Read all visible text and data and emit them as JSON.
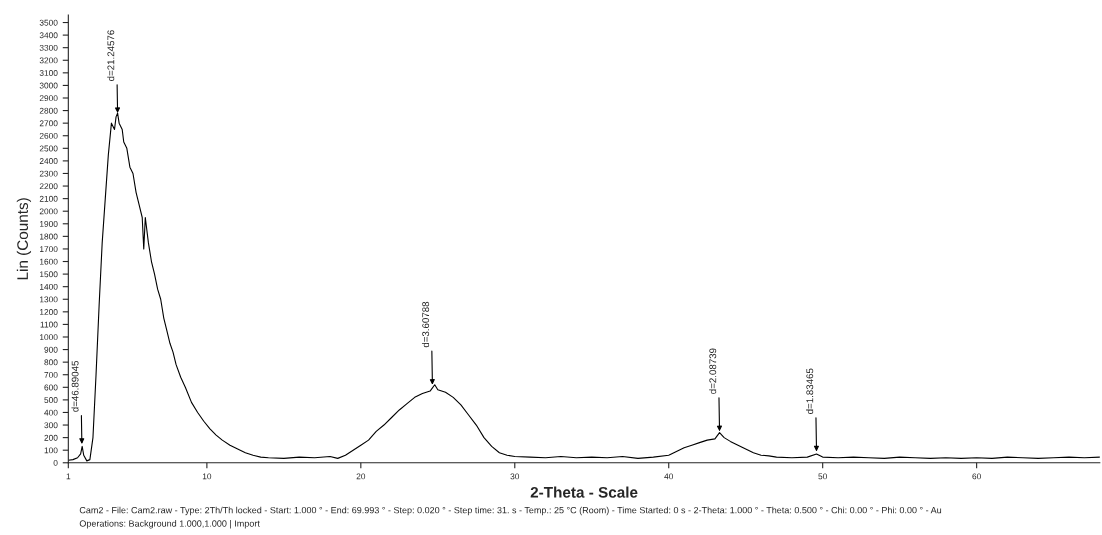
{
  "chart_data": {
    "type": "line",
    "xlabel": "2-Theta - Scale",
    "ylabel": "Lin (Counts)",
    "xlim": [
      1,
      68
    ],
    "xticks": [
      1,
      10,
      20,
      30,
      40,
      50,
      60
    ],
    "ylim": [
      0,
      3560
    ],
    "yticks": [
      0,
      100,
      200,
      300,
      400,
      500,
      600,
      700,
      800,
      900,
      1000,
      1100,
      1200,
      1300,
      1400,
      1500,
      1600,
      1700,
      1800,
      1900,
      2000,
      2100,
      2200,
      2300,
      2400,
      2500,
      2600,
      2700,
      2800,
      2900,
      3000,
      3100,
      3200,
      3300,
      3400,
      3500
    ],
    "grid": false,
    "legend": false,
    "marker": "none",
    "line_style": "solid",
    "series": [
      {
        "color": "#000000",
        "x": [
          1.0,
          1.3,
          1.6,
          1.8,
          1.9,
          2.0,
          2.2,
          2.4,
          2.6,
          2.8,
          3.0,
          3.2,
          3.4,
          3.6,
          3.8,
          4.0,
          4.1,
          4.2,
          4.3,
          4.5,
          4.6,
          4.8,
          5.0,
          5.2,
          5.4,
          5.6,
          5.8,
          5.9,
          6.0,
          6.2,
          6.4,
          6.6,
          6.8,
          7.0,
          7.2,
          7.4,
          7.6,
          7.8,
          8.0,
          8.3,
          8.6,
          9.0,
          9.4,
          9.8,
          10.2,
          10.6,
          11.0,
          11.5,
          12.0,
          12.5,
          13.0,
          13.5,
          14,
          15,
          16,
          17,
          18,
          18.5,
          19,
          19.5,
          20,
          20.5,
          21,
          21.5,
          22,
          22.5,
          23,
          23.5,
          24,
          24.5,
          24.8,
          25,
          25.5,
          26,
          26.5,
          27,
          27.5,
          28,
          28.5,
          29,
          29.5,
          30,
          31,
          32,
          33,
          34,
          35,
          36,
          37,
          38,
          39,
          40,
          40.5,
          41,
          41.5,
          42,
          42.5,
          43,
          43.3,
          43.6,
          44,
          44.5,
          45,
          45.5,
          46,
          46.5,
          47,
          48,
          49,
          49.6,
          50,
          51,
          52,
          53,
          54,
          55,
          56,
          57,
          58,
          59,
          60,
          61,
          62,
          63,
          64,
          65,
          66,
          67,
          68
        ],
        "values": [
          20,
          25,
          40,
          70,
          130,
          60,
          15,
          25,
          200,
          700,
          1250,
          1750,
          2100,
          2450,
          2700,
          2650,
          2750,
          2780,
          2700,
          2650,
          2550,
          2500,
          2350,
          2300,
          2150,
          2050,
          1950,
          1700,
          1950,
          1750,
          1600,
          1500,
          1380,
          1300,
          1150,
          1050,
          950,
          880,
          780,
          680,
          600,
          480,
          400,
          330,
          270,
          220,
          180,
          140,
          110,
          80,
          60,
          45,
          40,
          35,
          45,
          40,
          50,
          35,
          60,
          100,
          140,
          180,
          250,
          300,
          360,
          420,
          470,
          520,
          550,
          570,
          620,
          580,
          560,
          520,
          460,
          380,
          300,
          200,
          130,
          80,
          60,
          50,
          45,
          40,
          50,
          40,
          45,
          40,
          50,
          35,
          45,
          60,
          90,
          120,
          140,
          160,
          180,
          190,
          240,
          200,
          170,
          140,
          110,
          80,
          60,
          55,
          45,
          40,
          45,
          70,
          45,
          40,
          45,
          40,
          35,
          45,
          40,
          35,
          40,
          35,
          40,
          35,
          45,
          40,
          35,
          40,
          45,
          40,
          45
        ]
      }
    ],
    "annotations": [
      {
        "text": "d=46.89045",
        "x": 1.88,
        "y": 150
      },
      {
        "text": "d=21.24576",
        "x": 4.2,
        "y": 2780
      },
      {
        "text": "d=3.60788",
        "x": 24.65,
        "y": 620
      },
      {
        "text": "d=2.08739",
        "x": 43.3,
        "y": 250
      },
      {
        "text": "d=1.83465",
        "x": 49.6,
        "y": 90
      },
      "Cam2 - File: Cam2.raw - Type: 2Th/Th locked - Start: 1.000 ° - End: 69.993 ° - Step: 0.020 ° - Step time: 31. s - Temp.: 25 °C (Room) - Time Started: 0 s - 2-Theta: 1.000 ° - Theta: 0.500 ° - Chi: 0.00 ° - Phi: 0.00 ° - Au",
      "Operations: Background 1.000,1.000 | Import"
    ]
  }
}
